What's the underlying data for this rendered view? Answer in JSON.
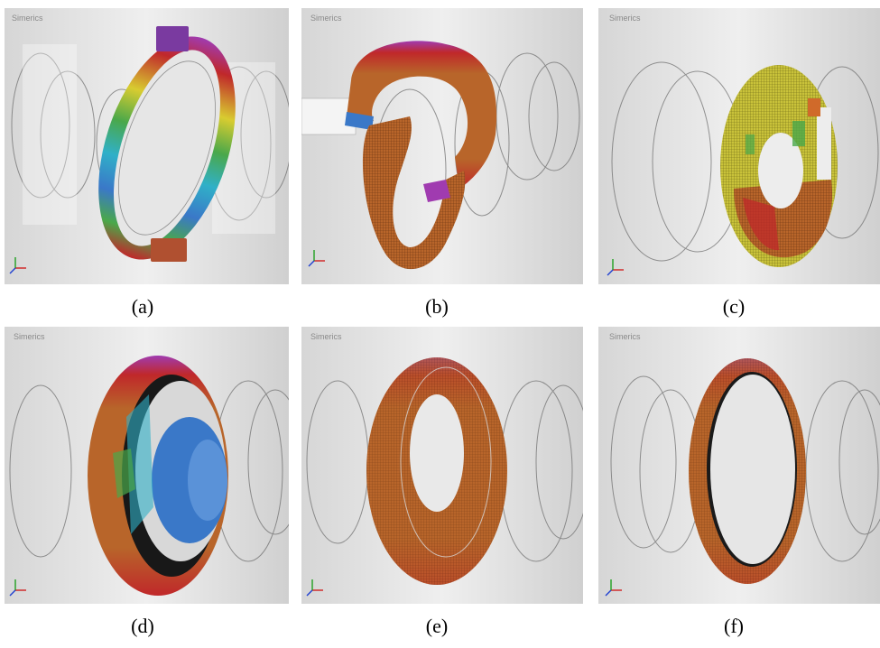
{
  "brand": "Simerics",
  "panels": [
    {
      "caption": "(a)"
    },
    {
      "caption": "(b)"
    },
    {
      "caption": "(c)"
    },
    {
      "caption": "(d)"
    },
    {
      "caption": "(e)"
    },
    {
      "caption": "(f)"
    }
  ],
  "colors": {
    "background_mesh": "#e3e3e3",
    "wire": "#5a5a5a",
    "orange_surface": "#b8652a",
    "red": "#c0282a",
    "blue": "#3a78c8",
    "green": "#4aa84a",
    "yellow": "#d8cc30",
    "magenta": "#a03bb0",
    "cyan": "#30b0c8"
  }
}
